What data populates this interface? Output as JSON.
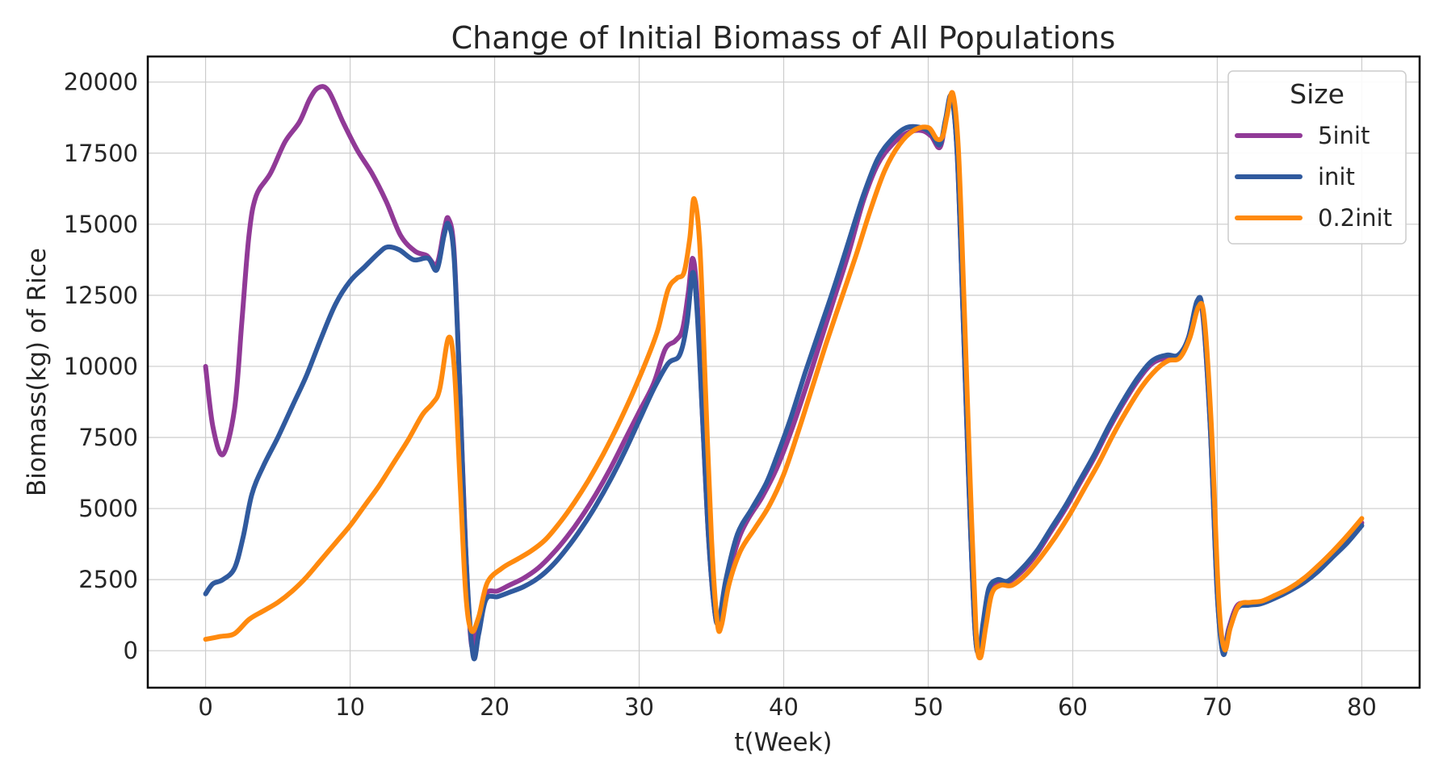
{
  "chart_data": {
    "type": "line",
    "title": "Change of Initial Biomass of All Populations",
    "xlabel": "t(Week)",
    "ylabel": "Biomass(kg) of Rice",
    "xlim": [
      -4,
      84
    ],
    "ylim": [
      -1300,
      20900
    ],
    "xticks": [
      0,
      10,
      20,
      30,
      40,
      50,
      60,
      70,
      80
    ],
    "yticks": [
      0,
      2500,
      5000,
      7500,
      10000,
      12500,
      15000,
      17500,
      20000
    ],
    "grid": true,
    "legend": {
      "title": "Size",
      "position": "top-right"
    },
    "series": [
      {
        "name": "5init",
        "color": "#913a97",
        "points": [
          [
            0,
            10000
          ],
          [
            0.5,
            7900
          ],
          [
            1.2,
            6900
          ],
          [
            2,
            8500
          ],
          [
            2.5,
            11500
          ],
          [
            3,
            14600
          ],
          [
            3.5,
            16000
          ],
          [
            4.5,
            16800
          ],
          [
            5.5,
            17900
          ],
          [
            6.5,
            18600
          ],
          [
            7.2,
            19400
          ],
          [
            7.8,
            19800
          ],
          [
            8.5,
            19700
          ],
          [
            9.5,
            18600
          ],
          [
            10.5,
            17600
          ],
          [
            11.5,
            16800
          ],
          [
            12.5,
            15800
          ],
          [
            13.5,
            14600
          ],
          [
            14.5,
            14050
          ],
          [
            15.3,
            13900
          ],
          [
            16,
            13600
          ],
          [
            16.5,
            14800
          ],
          [
            16.8,
            15200
          ],
          [
            17.2,
            14000
          ],
          [
            17.6,
            9000
          ],
          [
            18,
            3500
          ],
          [
            18.4,
            200
          ],
          [
            18.8,
            900
          ],
          [
            19.4,
            2000
          ],
          [
            20.2,
            2100
          ],
          [
            21,
            2300
          ],
          [
            22,
            2550
          ],
          [
            23,
            2900
          ],
          [
            24,
            3400
          ],
          [
            25,
            4000
          ],
          [
            26,
            4700
          ],
          [
            27,
            5500
          ],
          [
            28,
            6400
          ],
          [
            29,
            7400
          ],
          [
            30,
            8400
          ],
          [
            31,
            9400
          ],
          [
            31.8,
            10600
          ],
          [
            32.5,
            10900
          ],
          [
            33,
            11300
          ],
          [
            33.4,
            12600
          ],
          [
            33.7,
            13800
          ],
          [
            34,
            12500
          ],
          [
            34.4,
            8000
          ],
          [
            34.8,
            4000
          ],
          [
            35.2,
            1500
          ],
          [
            35.5,
            1000
          ],
          [
            36,
            2300
          ],
          [
            36.8,
            3800
          ],
          [
            37.5,
            4600
          ],
          [
            38.5,
            5400
          ],
          [
            39.5,
            6400
          ],
          [
            40.5,
            7700
          ],
          [
            41.5,
            9200
          ],
          [
            42.5,
            10800
          ],
          [
            43.5,
            12400
          ],
          [
            44.5,
            14000
          ],
          [
            45.5,
            15800
          ],
          [
            46.5,
            17100
          ],
          [
            47.5,
            17800
          ],
          [
            48.5,
            18200
          ],
          [
            49.5,
            18300
          ],
          [
            50.2,
            18100
          ],
          [
            50.8,
            17700
          ],
          [
            51.2,
            18600
          ],
          [
            51.6,
            19500
          ],
          [
            52,
            17500
          ],
          [
            52.4,
            12000
          ],
          [
            52.8,
            6000
          ],
          [
            53.2,
            1000
          ],
          [
            53.5,
            -100
          ],
          [
            53.8,
            900
          ],
          [
            54.2,
            2000
          ],
          [
            54.8,
            2400
          ],
          [
            55.5,
            2400
          ],
          [
            56.5,
            2800
          ],
          [
            57.5,
            3400
          ],
          [
            58.5,
            4200
          ],
          [
            59.5,
            5000
          ],
          [
            60.5,
            5900
          ],
          [
            61.5,
            6800
          ],
          [
            62.5,
            7800
          ],
          [
            63.5,
            8700
          ],
          [
            64.5,
            9500
          ],
          [
            65.5,
            10100
          ],
          [
            66.5,
            10300
          ],
          [
            67.3,
            10300
          ],
          [
            68,
            11000
          ],
          [
            68.6,
            12200
          ],
          [
            69,
            11800
          ],
          [
            69.5,
            8000
          ],
          [
            70,
            2000
          ],
          [
            70.4,
            0
          ],
          [
            70.8,
            800
          ],
          [
            71.4,
            1600
          ],
          [
            72.2,
            1650
          ],
          [
            73,
            1700
          ],
          [
            74,
            1900
          ],
          [
            75,
            2200
          ],
          [
            76,
            2500
          ],
          [
            77,
            2900
          ],
          [
            78,
            3400
          ],
          [
            79,
            3900
          ],
          [
            80,
            4500
          ]
        ]
      },
      {
        "name": "init",
        "color": "#305a9e",
        "points": [
          [
            0,
            2000
          ],
          [
            0.5,
            2350
          ],
          [
            1.2,
            2500
          ],
          [
            2,
            2900
          ],
          [
            2.6,
            4000
          ],
          [
            3.2,
            5500
          ],
          [
            4,
            6500
          ],
          [
            5,
            7500
          ],
          [
            6,
            8600
          ],
          [
            7,
            9700
          ],
          [
            8,
            11000
          ],
          [
            9,
            12200
          ],
          [
            10,
            13000
          ],
          [
            11,
            13500
          ],
          [
            12,
            14000
          ],
          [
            12.6,
            14200
          ],
          [
            13.4,
            14100
          ],
          [
            14.4,
            13750
          ],
          [
            15.4,
            13800
          ],
          [
            16,
            13400
          ],
          [
            16.5,
            14600
          ],
          [
            16.8,
            15000
          ],
          [
            17.2,
            13800
          ],
          [
            17.6,
            9000
          ],
          [
            18,
            3500
          ],
          [
            18.5,
            -150
          ],
          [
            18.9,
            600
          ],
          [
            19.4,
            1800
          ],
          [
            20.2,
            1900
          ],
          [
            21,
            2050
          ],
          [
            22,
            2250
          ],
          [
            23,
            2550
          ],
          [
            24,
            3000
          ],
          [
            25,
            3600
          ],
          [
            26,
            4300
          ],
          [
            27,
            5100
          ],
          [
            28,
            6000
          ],
          [
            29,
            7000
          ],
          [
            30,
            8100
          ],
          [
            31,
            9200
          ],
          [
            32,
            10100
          ],
          [
            32.8,
            10400
          ],
          [
            33.3,
            11500
          ],
          [
            33.7,
            13300
          ],
          [
            34,
            12000
          ],
          [
            34.4,
            8000
          ],
          [
            34.8,
            4000
          ],
          [
            35.2,
            1500
          ],
          [
            35.5,
            1000
          ],
          [
            36,
            2500
          ],
          [
            36.8,
            4100
          ],
          [
            37.8,
            5000
          ],
          [
            38.8,
            5900
          ],
          [
            39.5,
            6800
          ],
          [
            40.5,
            8200
          ],
          [
            41.5,
            9800
          ],
          [
            42.5,
            11300
          ],
          [
            43.5,
            12800
          ],
          [
            44.5,
            14400
          ],
          [
            45.5,
            16000
          ],
          [
            46.5,
            17300
          ],
          [
            47.5,
            18000
          ],
          [
            48.5,
            18400
          ],
          [
            49.5,
            18400
          ],
          [
            50.2,
            18200
          ],
          [
            50.8,
            17800
          ],
          [
            51.2,
            18700
          ],
          [
            51.6,
            19500
          ],
          [
            52,
            17500
          ],
          [
            52.4,
            12000
          ],
          [
            52.8,
            6000
          ],
          [
            53.2,
            1000
          ],
          [
            53.5,
            -100
          ],
          [
            53.8,
            1000
          ],
          [
            54.2,
            2200
          ],
          [
            54.8,
            2500
          ],
          [
            55.5,
            2450
          ],
          [
            56.5,
            2900
          ],
          [
            57.5,
            3500
          ],
          [
            58.5,
            4300
          ],
          [
            59.5,
            5100
          ],
          [
            60.5,
            6000
          ],
          [
            61.5,
            6900
          ],
          [
            62.5,
            7900
          ],
          [
            63.5,
            8800
          ],
          [
            64.5,
            9600
          ],
          [
            65.5,
            10200
          ],
          [
            66.5,
            10400
          ],
          [
            67.3,
            10400
          ],
          [
            68,
            11000
          ],
          [
            68.6,
            12300
          ],
          [
            69,
            11900
          ],
          [
            69.5,
            8000
          ],
          [
            70,
            2000
          ],
          [
            70.4,
            -100
          ],
          [
            70.8,
            700
          ],
          [
            71.4,
            1500
          ],
          [
            72.2,
            1600
          ],
          [
            73,
            1650
          ],
          [
            74,
            1850
          ],
          [
            75,
            2100
          ],
          [
            76,
            2400
          ],
          [
            77,
            2800
          ],
          [
            78,
            3300
          ],
          [
            79,
            3800
          ],
          [
            80,
            4400
          ]
        ]
      },
      {
        "name": "0.2init",
        "color": "#ff8a0e",
        "points": [
          [
            0,
            400
          ],
          [
            1,
            500
          ],
          [
            2,
            600
          ],
          [
            3,
            1100
          ],
          [
            4,
            1400
          ],
          [
            5,
            1700
          ],
          [
            6,
            2100
          ],
          [
            7,
            2600
          ],
          [
            8,
            3200
          ],
          [
            9,
            3800
          ],
          [
            10,
            4400
          ],
          [
            11,
            5100
          ],
          [
            12,
            5800
          ],
          [
            13,
            6600
          ],
          [
            14,
            7400
          ],
          [
            15,
            8300
          ],
          [
            15.7,
            8700
          ],
          [
            16.2,
            9200
          ],
          [
            16.8,
            11000
          ],
          [
            17.2,
            10000
          ],
          [
            17.6,
            6000
          ],
          [
            18,
            2000
          ],
          [
            18.4,
            700
          ],
          [
            18.9,
            1200
          ],
          [
            19.5,
            2400
          ],
          [
            20.5,
            2900
          ],
          [
            21.5,
            3200
          ],
          [
            22.5,
            3500
          ],
          [
            23.5,
            3900
          ],
          [
            24.5,
            4500
          ],
          [
            25.5,
            5200
          ],
          [
            26.5,
            6000
          ],
          [
            27.5,
            6900
          ],
          [
            28.5,
            7900
          ],
          [
            29.5,
            9000
          ],
          [
            30.5,
            10200
          ],
          [
            31.3,
            11300
          ],
          [
            32,
            12700
          ],
          [
            32.6,
            13100
          ],
          [
            33.1,
            13300
          ],
          [
            33.5,
            14500
          ],
          [
            33.8,
            15900
          ],
          [
            34.2,
            14200
          ],
          [
            34.6,
            9000
          ],
          [
            35,
            4000
          ],
          [
            35.4,
            1000
          ],
          [
            35.7,
            900
          ],
          [
            36.2,
            2300
          ],
          [
            37,
            3500
          ],
          [
            38,
            4300
          ],
          [
            39,
            5100
          ],
          [
            40,
            6200
          ],
          [
            41,
            7700
          ],
          [
            42,
            9300
          ],
          [
            43,
            10900
          ],
          [
            44,
            12400
          ],
          [
            45,
            13900
          ],
          [
            46,
            15500
          ],
          [
            47,
            16900
          ],
          [
            48,
            17800
          ],
          [
            49,
            18300
          ],
          [
            50,
            18400
          ],
          [
            50.6,
            18000
          ],
          [
            51,
            18100
          ],
          [
            51.3,
            18800
          ],
          [
            51.7,
            19600
          ],
          [
            52.1,
            17500
          ],
          [
            52.5,
            12000
          ],
          [
            52.9,
            6000
          ],
          [
            53.3,
            800
          ],
          [
            53.6,
            -250
          ],
          [
            54,
            900
          ],
          [
            54.4,
            2000
          ],
          [
            55,
            2300
          ],
          [
            55.8,
            2300
          ],
          [
            56.8,
            2700
          ],
          [
            57.8,
            3300
          ],
          [
            58.8,
            4000
          ],
          [
            59.8,
            4800
          ],
          [
            60.8,
            5700
          ],
          [
            61.8,
            6600
          ],
          [
            62.8,
            7600
          ],
          [
            63.8,
            8500
          ],
          [
            64.8,
            9300
          ],
          [
            65.8,
            9900
          ],
          [
            66.6,
            10200
          ],
          [
            67.4,
            10300
          ],
          [
            68.1,
            11000
          ],
          [
            68.7,
            12100
          ],
          [
            69.1,
            11700
          ],
          [
            69.6,
            7800
          ],
          [
            70.1,
            1800
          ],
          [
            70.5,
            50
          ],
          [
            70.9,
            800
          ],
          [
            71.5,
            1600
          ],
          [
            72.3,
            1700
          ],
          [
            73.1,
            1750
          ],
          [
            74,
            1950
          ],
          [
            75,
            2200
          ],
          [
            76,
            2550
          ],
          [
            77,
            3000
          ],
          [
            78,
            3500
          ],
          [
            79,
            4050
          ],
          [
            80,
            4650
          ]
        ]
      }
    ]
  }
}
